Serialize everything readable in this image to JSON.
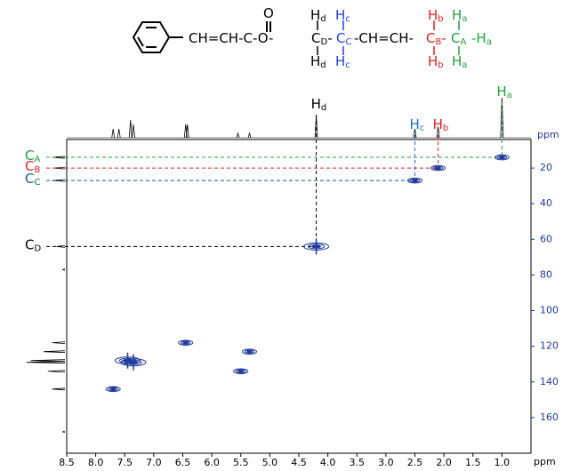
{
  "chart_data": {
    "type": "hsqc",
    "x_label": "ppm",
    "y_label": "ppm",
    "xlim": [
      8.5,
      0.5
    ],
    "ylim": [
      4,
      180
    ],
    "xticks": [
      8.5,
      {
        "value": 8,
        "label": "8.0"
      },
      7.5,
      {
        "value": 7,
        "label": "7.0"
      },
      6.5,
      {
        "value": 6,
        "label": "6.0"
      },
      5.5,
      {
        "value": 5,
        "label": "5.0"
      },
      4.5,
      {
        "value": 4,
        "label": "4.0"
      },
      3.5,
      {
        "value": 3,
        "label": "3.0"
      },
      2.5,
      {
        "value": 2,
        "label": "2.0"
      },
      1.5,
      {
        "value": 1,
        "label": "1.0"
      }
    ],
    "yticks": [
      20,
      40,
      60,
      80,
      100,
      120,
      140,
      160
    ],
    "peak_color": "#1f3a9a",
    "peaks": {
      "x": [
        1.0,
        2.1,
        2.5,
        4.2,
        6.45,
        5.35,
        7.45,
        7.35,
        5.5,
        7.7
      ],
      "y": [
        14,
        20,
        27,
        64,
        118,
        123,
        128,
        129,
        134,
        144
      ]
    },
    "top_projection": {
      "x": [
        7.7,
        7.6,
        7.4,
        7.35,
        6.45,
        6.42,
        5.55,
        5.35,
        4.2,
        2.5,
        2.1,
        1.0
      ],
      "values": [
        0.2,
        0.2,
        0.4,
        0.3,
        0.3,
        0.3,
        0.1,
        0.1,
        0.5,
        0.2,
        0.25,
        0.9
      ]
    },
    "left_projection": {
      "y": [
        14,
        20,
        27,
        64,
        77,
        118,
        123,
        128,
        129,
        134,
        144,
        168
      ],
      "values": [
        0.3,
        0.25,
        0.3,
        0.2,
        0.05,
        0.3,
        0.5,
        0.8,
        0.9,
        0.4,
        0.3,
        0.05
      ]
    },
    "h_annotations": [
      {
        "text": "H",
        "sub": "d",
        "x": 4.2,
        "y": 64,
        "color": "#000000"
      },
      {
        "text": "H",
        "sub": "c",
        "x": 2.5,
        "y": 27,
        "color": "#1a6fc0"
      },
      {
        "text": "H",
        "sub": "b",
        "x": 2.1,
        "y": 20,
        "color": "#e02020"
      },
      {
        "text": "H",
        "sub": "a",
        "x": 1.0,
        "y": 14,
        "color": "#20a040"
      }
    ],
    "c_annotations": [
      {
        "text": "C",
        "sub": "A",
        "x": 1.0,
        "y": 14,
        "color": "#20a040"
      },
      {
        "text": "C",
        "sub": "B",
        "x": 2.1,
        "y": 20,
        "color": "#e02020"
      },
      {
        "text": "C",
        "sub": "C",
        "x": 2.5,
        "y": 27,
        "color": "#106080"
      },
      {
        "text": "C",
        "sub": "D",
        "x": 4.2,
        "y": 64,
        "color": "#000000"
      }
    ],
    "structure": [
      {
        "text": "CH=CH-C-O-",
        "color": "#000000"
      },
      {
        "text": "O",
        "color": "#000000"
      },
      {
        "text": "C",
        "sub": "D",
        "color": "#000000"
      },
      {
        "text": "H",
        "sub": "d",
        "color": "#000000"
      },
      {
        "text": "H",
        "sub": "d",
        "color": "#000000"
      },
      {
        "text": "C",
        "sub": "C",
        "color": "#2040e0"
      },
      {
        "text": "H",
        "sub": "c",
        "color": "#2040e0"
      },
      {
        "text": "H",
        "sub": "c",
        "color": "#2040e0"
      },
      {
        "text": "-CH=CH-",
        "color": "#000000"
      },
      {
        "text": "C",
        "sub": "B",
        "color": "#e02020"
      },
      {
        "text": "H",
        "sub": "b",
        "color": "#e02020"
      },
      {
        "text": "H",
        "sub": "b",
        "color": "#e02020"
      },
      {
        "text": "C",
        "sub": "A",
        "color": "#20a040"
      },
      {
        "text": "H",
        "sub": "a",
        "color": "#20a040"
      },
      {
        "text": "H",
        "sub": "a",
        "color": "#20a040"
      },
      {
        "text": "H",
        "sub": "a",
        "color": "#20a040"
      }
    ]
  }
}
